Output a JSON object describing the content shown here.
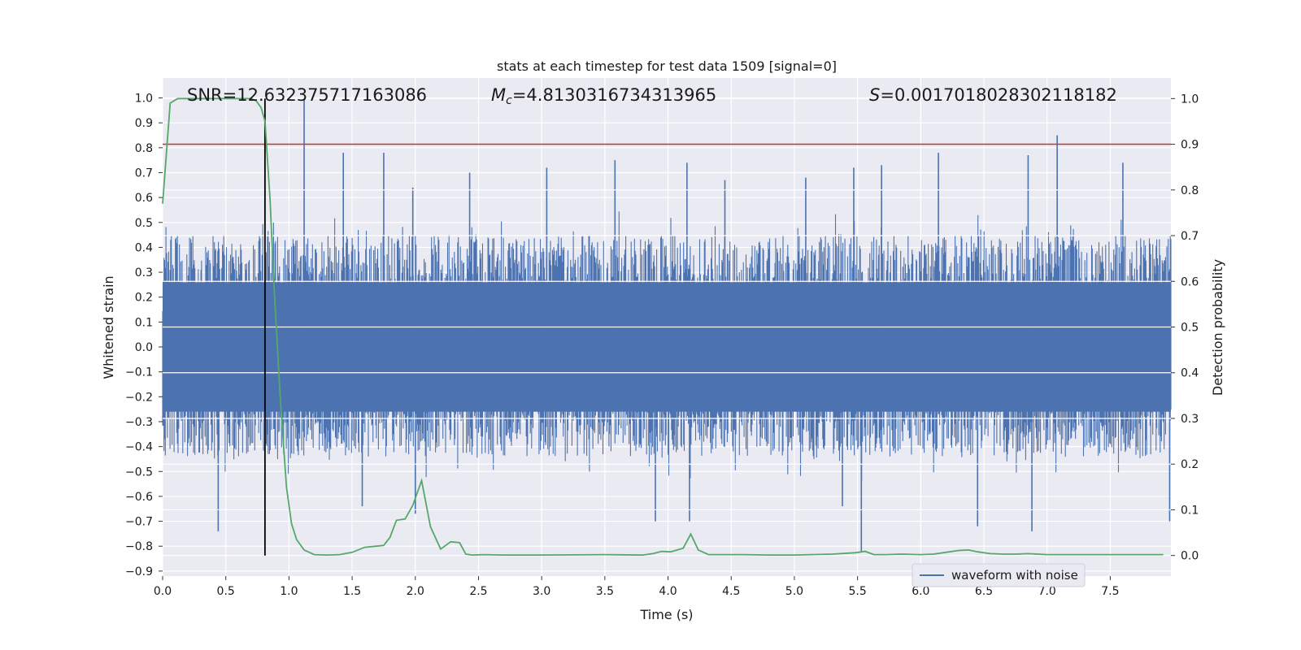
{
  "chart_data": {
    "type": "line",
    "title": "stats at each timestep for test data 1509 [signal=0]",
    "xlabel": "Time (s)",
    "ylabel_left": "Whitened strain",
    "ylabel_right": "Detection probability",
    "xlim": [
      0.0,
      7.98
    ],
    "ylim_left": [
      -0.92,
      1.08
    ],
    "ylim_right": [
      -0.045,
      1.045
    ],
    "x_ticks": [
      0.0,
      0.5,
      1.0,
      1.5,
      2.0,
      2.5,
      3.0,
      3.5,
      4.0,
      4.5,
      5.0,
      5.5,
      6.0,
      6.5,
      7.0,
      7.5
    ],
    "x_tick_labels": [
      "0.0",
      "0.5",
      "1.0",
      "1.5",
      "2.0",
      "2.5",
      "3.0",
      "3.5",
      "4.0",
      "4.5",
      "5.0",
      "5.5",
      "6.0",
      "6.5",
      "7.0",
      "7.5"
    ],
    "y_left_ticks": [
      1.0,
      0.9,
      0.8,
      0.7,
      0.6,
      0.5,
      0.4,
      0.3,
      0.2,
      0.1,
      0.0,
      -0.1,
      -0.2,
      -0.3,
      -0.4,
      -0.5,
      -0.6,
      -0.7,
      -0.8,
      -0.9
    ],
    "y_left_tick_labels": [
      "1.0",
      "0.9",
      "0.8",
      "0.7",
      "0.6",
      "0.5",
      "0.4",
      "0.3",
      "0.2",
      "0.1",
      "0.0",
      "−0.1",
      "−0.2",
      "−0.3",
      "−0.4",
      "−0.5",
      "−0.6",
      "−0.7",
      "−0.8",
      "−0.9"
    ],
    "y_right_ticks": [
      1.0,
      0.9,
      0.8,
      0.7,
      0.6,
      0.5,
      0.4,
      0.3,
      0.2,
      0.1,
      0.0
    ],
    "y_right_tick_labels": [
      "1.0",
      "0.9",
      "0.8",
      "0.7",
      "0.6",
      "0.5",
      "0.4",
      "0.3",
      "0.2",
      "0.1",
      "0.0"
    ],
    "annotations": {
      "snr": "SNR=12.632375717163086",
      "mc_symbol": "M",
      "mc_subscript": "c",
      "mc_value": "=4.8130316734313965",
      "s_symbol": "S",
      "s_value": "=0.0017018028302118182"
    },
    "threshold": {
      "value": 0.9,
      "axis": "right",
      "color": "#c0392b"
    },
    "marker_line": {
      "x": 0.81,
      "y_from": 1.0,
      "y_to": 0.0,
      "axis": "right",
      "color": "#000000"
    },
    "series": [
      {
        "name": "waveform with noise",
        "axis": "left",
        "color": "#4c72b0",
        "style": "noise-waveform",
        "core_amplitude": 0.26,
        "typical_peak_top": 0.45,
        "typical_peak_bottom": -0.44,
        "spikes": [
          {
            "x": 1.12,
            "y": 1.0
          },
          {
            "x": 1.43,
            "y": 0.78
          },
          {
            "x": 1.75,
            "y": 0.78
          },
          {
            "x": 1.98,
            "y": 0.64
          },
          {
            "x": 2.43,
            "y": 0.7
          },
          {
            "x": 3.04,
            "y": 0.72
          },
          {
            "x": 3.58,
            "y": 0.75
          },
          {
            "x": 4.15,
            "y": 0.74
          },
          {
            "x": 4.45,
            "y": 0.67
          },
          {
            "x": 5.09,
            "y": 0.68
          },
          {
            "x": 5.47,
            "y": 0.72
          },
          {
            "x": 5.69,
            "y": 0.73
          },
          {
            "x": 6.14,
            "y": 0.78
          },
          {
            "x": 6.85,
            "y": 0.77
          },
          {
            "x": 7.08,
            "y": 0.85
          },
          {
            "x": 7.6,
            "y": 0.74
          },
          {
            "x": 0.44,
            "y": -0.74
          },
          {
            "x": 1.58,
            "y": -0.64
          },
          {
            "x": 2.0,
            "y": -0.67
          },
          {
            "x": 3.9,
            "y": -0.7
          },
          {
            "x": 4.17,
            "y": -0.7
          },
          {
            "x": 5.38,
            "y": -0.64
          },
          {
            "x": 5.53,
            "y": -0.82
          },
          {
            "x": 6.45,
            "y": -0.72
          },
          {
            "x": 6.88,
            "y": -0.74
          },
          {
            "x": 7.97,
            "y": -0.7
          }
        ]
      },
      {
        "name": "detection probability",
        "axis": "right",
        "color": "#55a868",
        "x": [
          0.0,
          0.06,
          0.12,
          0.2,
          0.35,
          0.5,
          0.6,
          0.7,
          0.74,
          0.78,
          0.81,
          0.85,
          0.88,
          0.93,
          0.98,
          1.02,
          1.06,
          1.12,
          1.2,
          1.3,
          1.4,
          1.5,
          1.6,
          1.75,
          1.8,
          1.85,
          1.92,
          1.98,
          2.05,
          2.12,
          2.2,
          2.28,
          2.35,
          2.4,
          2.45,
          2.55,
          2.7,
          3.0,
          3.5,
          3.8,
          3.88,
          3.95,
          4.02,
          4.12,
          4.18,
          4.24,
          4.32,
          4.6,
          4.8,
          5.0,
          5.3,
          5.48,
          5.56,
          5.63,
          5.72,
          5.85,
          6.0,
          6.1,
          6.2,
          6.3,
          6.38,
          6.45,
          6.55,
          6.65,
          6.75,
          6.85,
          7.0,
          7.5,
          7.92
        ],
        "values": [
          0.77,
          0.99,
          1.0,
          1.0,
          1.0,
          1.0,
          1.0,
          1.0,
          0.995,
          0.98,
          0.95,
          0.78,
          0.6,
          0.35,
          0.15,
          0.07,
          0.035,
          0.012,
          0.002,
          0.001,
          0.002,
          0.007,
          0.018,
          0.022,
          0.04,
          0.077,
          0.08,
          0.11,
          0.164,
          0.063,
          0.014,
          0.03,
          0.028,
          0.003,
          0.001,
          0.002,
          0.001,
          0.001,
          0.002,
          0.001,
          0.004,
          0.009,
          0.008,
          0.016,
          0.047,
          0.012,
          0.002,
          0.002,
          0.001,
          0.001,
          0.003,
          0.006,
          0.009,
          0.002,
          0.002,
          0.003,
          0.002,
          0.003,
          0.007,
          0.011,
          0.012,
          0.008,
          0.004,
          0.003,
          0.003,
          0.004,
          0.002,
          0.002,
          0.002
        ]
      }
    ],
    "legend": {
      "position": "lower-right",
      "entries": [
        "waveform with noise"
      ]
    }
  }
}
